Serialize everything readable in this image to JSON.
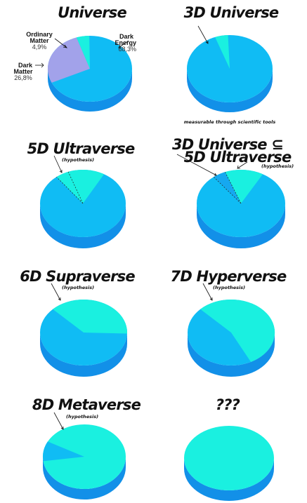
{
  "colors": {
    "top": "#10bcf4",
    "side": "#1290e8",
    "cyan": "#1af0e0",
    "purple": "#a2a2ea",
    "pale": "#16a8f0"
  },
  "chart_data": [
    {
      "type": "pie",
      "title": "Universe",
      "slices": [
        {
          "label": "Dark Energy",
          "value": 68.3,
          "display": "68,3%"
        },
        {
          "label": "Dark Matter",
          "value": 26.8,
          "display": "26,8%"
        },
        {
          "label": "Ordinary Matter",
          "value": 4.9,
          "display": "4,9%"
        }
      ]
    },
    {
      "type": "pie",
      "title": "3D Universe",
      "note": "measurable through scientific tools",
      "slices": [
        {
          "label": "",
          "value": 95.1
        },
        {
          "label": "",
          "value": 4.9
        }
      ]
    },
    {
      "type": "pie",
      "title": "5D Ultraverse",
      "subtitle": "(hypothesis)",
      "slices": [
        {
          "label": "",
          "value": 84
        },
        {
          "label": "",
          "value": 16
        }
      ]
    },
    {
      "type": "pie",
      "title": "3D Universe ⊆ 5D Ultraverse",
      "subtitle": "(hypothesis)",
      "slices": [
        {
          "label": "",
          "value": 84
        },
        {
          "label": "",
          "value": 16
        }
      ]
    },
    {
      "type": "pie",
      "title": "6D Supraverse",
      "subtitle": "(hypothesis)",
      "slices": [
        {
          "label": "",
          "value": 62
        },
        {
          "label": "",
          "value": 38
        }
      ]
    },
    {
      "type": "pie",
      "title": "7D Hyperverse",
      "subtitle": "(hypothesis)",
      "slices": [
        {
          "label": "",
          "value": 45
        },
        {
          "label": "",
          "value": 55
        }
      ]
    },
    {
      "type": "pie",
      "title": "8D Metaverse",
      "subtitle": "(hypothesis)",
      "slices": [
        {
          "label": "",
          "value": 10
        },
        {
          "label": "",
          "value": 90
        }
      ]
    },
    {
      "type": "pie",
      "title": "???",
      "slices": [
        {
          "label": "",
          "value": 100
        }
      ]
    }
  ]
}
